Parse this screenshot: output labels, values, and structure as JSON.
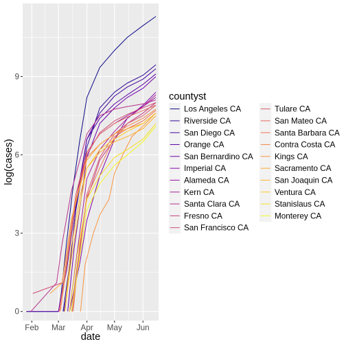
{
  "chart_data": {
    "type": "line",
    "xlabel": "date",
    "ylabel": "log(cases)",
    "x_ticks": [
      "Feb",
      "Mar",
      "Apr",
      "May",
      "Jun"
    ],
    "x_tick_dates": [
      "2020-02-01",
      "2020-03-01",
      "2020-04-01",
      "2020-05-01",
      "2020-06-01"
    ],
    "xlim": [
      "2020-01-22",
      "2020-06-18"
    ],
    "y_ticks": [
      0,
      3,
      6,
      9
    ],
    "ylim": [
      -0.35,
      11.8
    ],
    "grid": true,
    "legend_title": "countyst",
    "legend_position": "right",
    "series": [
      {
        "name": "Los Angeles CA",
        "color": "#0D0887",
        "points": [
          [
            "2020-01-26",
            0
          ],
          [
            "2020-03-01",
            0
          ],
          [
            "2020-03-04",
            0.69
          ],
          [
            "2020-03-10",
            2.7
          ],
          [
            "2020-03-17",
            4.8
          ],
          [
            "2020-03-24",
            6.5
          ],
          [
            "2020-04-01",
            8.2
          ],
          [
            "2020-04-15",
            9.35
          ],
          [
            "2020-05-01",
            10.0
          ],
          [
            "2020-05-15",
            10.5
          ],
          [
            "2020-06-01",
            10.95
          ],
          [
            "2020-06-15",
            11.3
          ]
        ]
      },
      {
        "name": "Riverside CA",
        "color": "#2C0594",
        "points": [
          [
            "2020-03-06",
            0
          ],
          [
            "2020-03-12",
            1.5
          ],
          [
            "2020-03-20",
            3.9
          ],
          [
            "2020-04-01",
            6.3
          ],
          [
            "2020-04-15",
            7.8
          ],
          [
            "2020-05-01",
            8.4
          ],
          [
            "2020-05-15",
            8.75
          ],
          [
            "2020-06-01",
            9.05
          ],
          [
            "2020-06-15",
            9.45
          ]
        ]
      },
      {
        "name": "San Diego CA",
        "color": "#43039E",
        "points": [
          [
            "2020-03-07",
            0
          ],
          [
            "2020-03-12",
            1.2
          ],
          [
            "2020-03-20",
            4.0
          ],
          [
            "2020-04-01",
            6.6
          ],
          [
            "2020-04-15",
            7.6
          ],
          [
            "2020-05-01",
            8.25
          ],
          [
            "2020-05-15",
            8.6
          ],
          [
            "2020-06-01",
            8.9
          ],
          [
            "2020-06-15",
            9.3
          ]
        ]
      },
      {
        "name": "Orange CA",
        "color": "#5901A5",
        "points": [
          [
            "2020-01-26",
            0
          ],
          [
            "2020-03-01",
            0
          ],
          [
            "2020-03-10",
            1.6
          ],
          [
            "2020-03-20",
            4.2
          ],
          [
            "2020-04-01",
            6.6
          ],
          [
            "2020-04-15",
            7.4
          ],
          [
            "2020-05-01",
            7.95
          ],
          [
            "2020-05-15",
            8.3
          ],
          [
            "2020-06-01",
            8.7
          ],
          [
            "2020-06-15",
            9.1
          ]
        ]
      },
      {
        "name": "San Bernardino CA",
        "color": "#6E00A8",
        "points": [
          [
            "2020-03-11",
            0
          ],
          [
            "2020-03-18",
            2.4
          ],
          [
            "2020-04-01",
            5.9
          ],
          [
            "2020-04-15",
            7.2
          ],
          [
            "2020-05-01",
            7.8
          ],
          [
            "2020-05-15",
            8.2
          ],
          [
            "2020-06-01",
            8.55
          ],
          [
            "2020-06-15",
            9.0
          ]
        ]
      },
      {
        "name": "Imperial CA",
        "color": "#8305A7",
        "points": [
          [
            "2020-03-13",
            0
          ],
          [
            "2020-03-24",
            1.8
          ],
          [
            "2020-04-01",
            3.5
          ],
          [
            "2020-04-15",
            5.2
          ],
          [
            "2020-05-01",
            6.6
          ],
          [
            "2020-05-15",
            7.4
          ],
          [
            "2020-06-01",
            7.9
          ],
          [
            "2020-06-15",
            8.4
          ]
        ]
      },
      {
        "name": "Alameda CA",
        "color": "#9512A1",
        "points": [
          [
            "2020-03-01",
            0
          ],
          [
            "2020-03-10",
            1.8
          ],
          [
            "2020-03-20",
            4.3
          ],
          [
            "2020-04-01",
            6.1
          ],
          [
            "2020-04-15",
            6.8
          ],
          [
            "2020-05-01",
            7.2
          ],
          [
            "2020-05-15",
            7.5
          ],
          [
            "2020-06-01",
            7.85
          ],
          [
            "2020-06-15",
            8.2
          ]
        ]
      },
      {
        "name": "Kern CA",
        "color": "#A62098",
        "points": [
          [
            "2020-03-13",
            0
          ],
          [
            "2020-03-20",
            1.9
          ],
          [
            "2020-04-01",
            5.1
          ],
          [
            "2020-04-15",
            6.2
          ],
          [
            "2020-05-01",
            6.9
          ],
          [
            "2020-05-15",
            7.4
          ],
          [
            "2020-06-01",
            7.85
          ],
          [
            "2020-06-15",
            8.3
          ]
        ]
      },
      {
        "name": "Santa Clara CA",
        "color": "#B6308B",
        "points": [
          [
            "2020-01-31",
            0
          ],
          [
            "2020-02-28",
            1.1
          ],
          [
            "2020-03-05",
            2.6
          ],
          [
            "2020-03-15",
            4.6
          ],
          [
            "2020-04-01",
            6.8
          ],
          [
            "2020-04-15",
            7.5
          ],
          [
            "2020-05-01",
            7.75
          ],
          [
            "2020-05-15",
            7.85
          ],
          [
            "2020-06-01",
            7.95
          ],
          [
            "2020-06-15",
            8.1
          ]
        ]
      },
      {
        "name": "Fresno CA",
        "color": "#C33D80",
        "points": [
          [
            "2020-03-15",
            0
          ],
          [
            "2020-03-22",
            1.9
          ],
          [
            "2020-04-01",
            4.3
          ],
          [
            "2020-04-15",
            5.8
          ],
          [
            "2020-05-01",
            6.6
          ],
          [
            "2020-05-15",
            7.2
          ],
          [
            "2020-06-01",
            7.6
          ],
          [
            "2020-06-15",
            8.0
          ]
        ]
      },
      {
        "name": "San Francisco CA",
        "color": "#CF4C74",
        "points": [
          [
            "2020-02-02",
            0.69
          ],
          [
            "2020-03-05",
            1.1
          ],
          [
            "2020-03-15",
            3.5
          ],
          [
            "2020-04-01",
            6.0
          ],
          [
            "2020-04-15",
            6.85
          ],
          [
            "2020-05-01",
            7.3
          ],
          [
            "2020-05-15",
            7.55
          ],
          [
            "2020-06-01",
            7.8
          ],
          [
            "2020-06-15",
            8.0
          ]
        ]
      },
      {
        "name": "Tulare CA",
        "color": "#DA5B69",
        "points": [
          [
            "2020-03-16",
            0
          ],
          [
            "2020-03-24",
            2.2
          ],
          [
            "2020-04-01",
            4.5
          ],
          [
            "2020-04-15",
            5.9
          ],
          [
            "2020-05-01",
            6.8
          ],
          [
            "2020-05-15",
            7.2
          ],
          [
            "2020-06-01",
            7.5
          ],
          [
            "2020-06-15",
            7.9
          ]
        ]
      },
      {
        "name": "San Mateo CA",
        "color": "#E4695E",
        "points": [
          [
            "2020-03-02",
            0
          ],
          [
            "2020-03-10",
            2.0
          ],
          [
            "2020-03-20",
            4.5
          ],
          [
            "2020-04-01",
            6.1
          ],
          [
            "2020-04-15",
            6.8
          ],
          [
            "2020-05-01",
            7.2
          ],
          [
            "2020-05-15",
            7.45
          ],
          [
            "2020-06-01",
            7.7
          ],
          [
            "2020-06-15",
            7.9
          ]
        ]
      },
      {
        "name": "Santa Barbara CA",
        "color": "#EC7853",
        "points": [
          [
            "2020-03-17",
            0
          ],
          [
            "2020-03-24",
            2.5
          ],
          [
            "2020-04-01",
            4.4
          ],
          [
            "2020-04-15",
            5.5
          ],
          [
            "2020-05-01",
            6.7
          ],
          [
            "2020-05-15",
            7.0
          ],
          [
            "2020-06-01",
            7.3
          ],
          [
            "2020-06-15",
            7.7
          ]
        ]
      },
      {
        "name": "Contra Costa CA",
        "color": "#F48849",
        "points": [
          [
            "2020-03-03",
            0
          ],
          [
            "2020-03-10",
            1.8
          ],
          [
            "2020-03-20",
            4.3
          ],
          [
            "2020-04-01",
            5.9
          ],
          [
            "2020-04-15",
            6.4
          ],
          [
            "2020-05-01",
            6.8
          ],
          [
            "2020-05-15",
            7.1
          ],
          [
            "2020-06-01",
            7.4
          ],
          [
            "2020-06-15",
            7.75
          ]
        ]
      },
      {
        "name": "Kings CA",
        "color": "#F89540",
        "points": [
          [
            "2020-03-25",
            0
          ],
          [
            "2020-03-30",
            1.8
          ],
          [
            "2020-04-08",
            3.0
          ],
          [
            "2020-04-15",
            3.7
          ],
          [
            "2020-04-25",
            4.3
          ],
          [
            "2020-05-01",
            5.3
          ],
          [
            "2020-05-10",
            6.0
          ],
          [
            "2020-05-20",
            6.7
          ],
          [
            "2020-06-01",
            7.1
          ],
          [
            "2020-06-15",
            7.6
          ]
        ]
      },
      {
        "name": "Sacramento CA",
        "color": "#FCA636",
        "points": [
          [
            "2020-02-21",
            0.69
          ],
          [
            "2020-03-05",
            1.1
          ],
          [
            "2020-03-15",
            3.5
          ],
          [
            "2020-04-01",
            5.8
          ],
          [
            "2020-04-15",
            6.4
          ],
          [
            "2020-05-01",
            6.8
          ],
          [
            "2020-05-15",
            7.0
          ],
          [
            "2020-06-01",
            7.2
          ],
          [
            "2020-06-15",
            7.6
          ]
        ]
      },
      {
        "name": "San Joaquin CA",
        "color": "#FDB32F",
        "points": [
          [
            "2020-03-08",
            0
          ],
          [
            "2020-03-15",
            2.5
          ],
          [
            "2020-03-25",
            4.5
          ],
          [
            "2020-04-01",
            5.5
          ],
          [
            "2020-04-15",
            6.1
          ],
          [
            "2020-05-01",
            6.5
          ],
          [
            "2020-05-15",
            6.7
          ],
          [
            "2020-06-01",
            7.0
          ],
          [
            "2020-06-15",
            7.5
          ]
        ]
      },
      {
        "name": "Ventura CA",
        "color": "#FDC827",
        "points": [
          [
            "2020-03-08",
            0
          ],
          [
            "2020-03-15",
            2.0
          ],
          [
            "2020-03-25",
            4.2
          ],
          [
            "2020-04-01",
            5.5
          ],
          [
            "2020-04-15",
            6.2
          ],
          [
            "2020-05-01",
            6.6
          ],
          [
            "2020-05-15",
            6.9
          ],
          [
            "2020-06-01",
            7.2
          ],
          [
            "2020-06-15",
            7.6
          ]
        ]
      },
      {
        "name": "Stanislaus CA",
        "color": "#F8DF25",
        "points": [
          [
            "2020-03-13",
            0
          ],
          [
            "2020-03-22",
            2.3
          ],
          [
            "2020-04-01",
            4.3
          ],
          [
            "2020-04-15",
            5.2
          ],
          [
            "2020-05-01",
            5.9
          ],
          [
            "2020-05-15",
            6.2
          ],
          [
            "2020-06-01",
            6.6
          ],
          [
            "2020-06-15",
            7.2
          ]
        ]
      },
      {
        "name": "Monterey CA",
        "color": "#F0F921",
        "points": [
          [
            "2020-03-15",
            0
          ],
          [
            "2020-03-25",
            2.3
          ],
          [
            "2020-04-01",
            3.9
          ],
          [
            "2020-04-15",
            4.9
          ],
          [
            "2020-05-01",
            5.6
          ],
          [
            "2020-05-15",
            6.0
          ],
          [
            "2020-06-01",
            6.5
          ],
          [
            "2020-06-15",
            7.1
          ]
        ]
      }
    ]
  }
}
